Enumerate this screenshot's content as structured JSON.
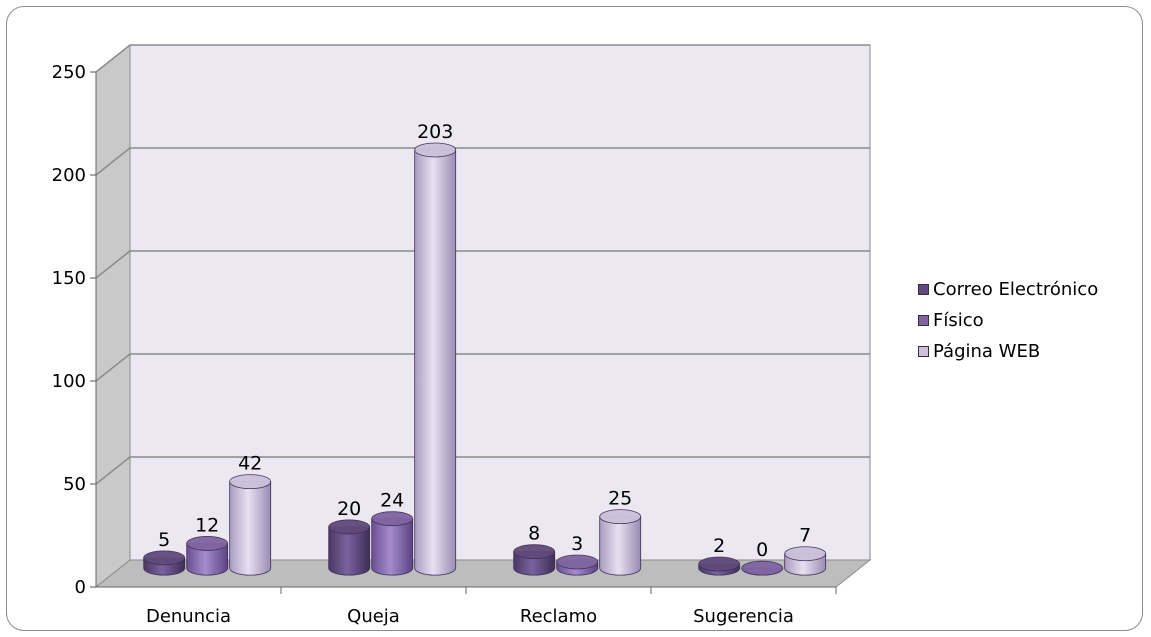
{
  "chart_data": {
    "type": "bar",
    "style": "3d-cylinder",
    "categories": [
      "Denuncia",
      "Queja",
      "Reclamo",
      "Sugerencia"
    ],
    "series": [
      {
        "name": "Correo Electrónico",
        "color": "#604a7b",
        "values": [
          5,
          20,
          8,
          2
        ]
      },
      {
        "name": "Físico",
        "color": "#8064a2",
        "values": [
          12,
          24,
          3,
          0
        ]
      },
      {
        "name": "Página WEB",
        "color": "#ccc1da",
        "values": [
          42,
          203,
          25,
          7
        ]
      }
    ],
    "yticks": [
      "0",
      "50",
      "100",
      "150",
      "200",
      "250"
    ],
    "ylim": [
      0,
      250
    ],
    "grid": true,
    "legend": "right",
    "title": "",
    "xlabel": "",
    "ylabel": ""
  }
}
